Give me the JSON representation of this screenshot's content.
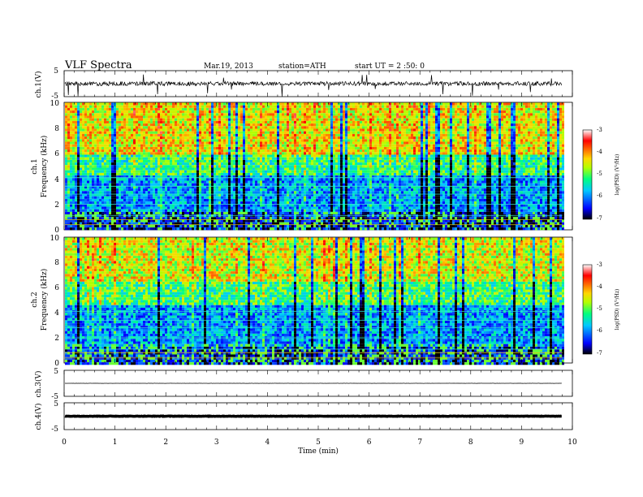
{
  "header": {
    "title": "VLF Spectra",
    "date": "Mar.19, 2013",
    "station": "station=ATH",
    "start": "start UT = 2 :50: 0"
  },
  "chart_data": [
    {
      "type": "line",
      "panel": "ch1-waveform",
      "ylabel": "ch.1(V)",
      "ylim": [
        -5,
        5
      ],
      "yticks": [
        "5",
        "-5"
      ],
      "series": [
        {
          "values": "noisy waveform centered near 0 V with spikes toward -5 V"
        }
      ],
      "baseline": 0
    },
    {
      "type": "heatmap",
      "panel": "ch1-spectrogram",
      "ylabel_top": "ch.1",
      "ylabel": "Frequency (kHz)",
      "ylim": [
        0,
        10
      ],
      "yticks": [
        "0",
        "2",
        "4",
        "6",
        "8",
        "10"
      ],
      "colorbar": {
        "label": "log(PSD) (V²/Hz)",
        "range": [
          -7,
          -3
        ],
        "ticks": [
          "-3",
          "-4",
          "-5",
          "-6",
          "-7"
        ]
      },
      "bands_khz": [
        {
          "from": 0,
          "to": 1.5,
          "level": -6.5
        },
        {
          "from": 1.5,
          "to": 4.3,
          "level": -5.9
        },
        {
          "from": 4.3,
          "to": 6.0,
          "level": -5.2
        },
        {
          "from": 6.0,
          "to": 10,
          "level": -4.4
        }
      ]
    },
    {
      "type": "heatmap",
      "panel": "ch2-spectrogram",
      "ylabel_top": "ch.2",
      "ylabel": "Frequency (kHz)",
      "ylim": [
        0,
        10
      ],
      "yticks": [
        "0",
        "2",
        "4",
        "6",
        "8",
        "10"
      ],
      "colorbar": {
        "label": "log(PSD) (V²/Hz)",
        "range": [
          -7,
          -3
        ],
        "ticks": [
          "-3",
          "-4",
          "-5",
          "-6",
          "-7"
        ]
      },
      "bands_khz": [
        {
          "from": 0,
          "to": 1.5,
          "level": -6.5
        },
        {
          "from": 1.5,
          "to": 4.7,
          "level": -5.9
        },
        {
          "from": 4.7,
          "to": 6.5,
          "level": -5.1
        },
        {
          "from": 6.5,
          "to": 10,
          "level": -4.5
        }
      ]
    },
    {
      "type": "line",
      "panel": "ch3-waveform",
      "ylabel": "ch.3(V)",
      "ylim": [
        -5,
        5
      ],
      "yticks": [
        "5",
        "-5"
      ],
      "series": [
        {
          "values": "flat near 0 V"
        }
      ],
      "baseline": 0
    },
    {
      "type": "line",
      "panel": "ch4-waveform",
      "ylabel": "ch.4(V)",
      "ylim": [
        -5,
        5
      ],
      "yticks": [
        "5",
        "-5"
      ],
      "series": [
        {
          "values": "flat near 0 V, thick trace"
        }
      ],
      "baseline": 0
    }
  ],
  "x_axis": {
    "label": "Time (min)",
    "range": [
      0,
      10
    ],
    "data_end": 9.8,
    "ticks": [
      "0",
      "1",
      "2",
      "3",
      "4",
      "5",
      "6",
      "7",
      "8",
      "9",
      "10"
    ]
  },
  "colors": {
    "scale": [
      "#000000",
      "#0000ff",
      "#00c8ff",
      "#00ff7f",
      "#b4ff00",
      "#ffd700",
      "#ff6a00",
      "#ff0000",
      "#ffffff"
    ]
  }
}
